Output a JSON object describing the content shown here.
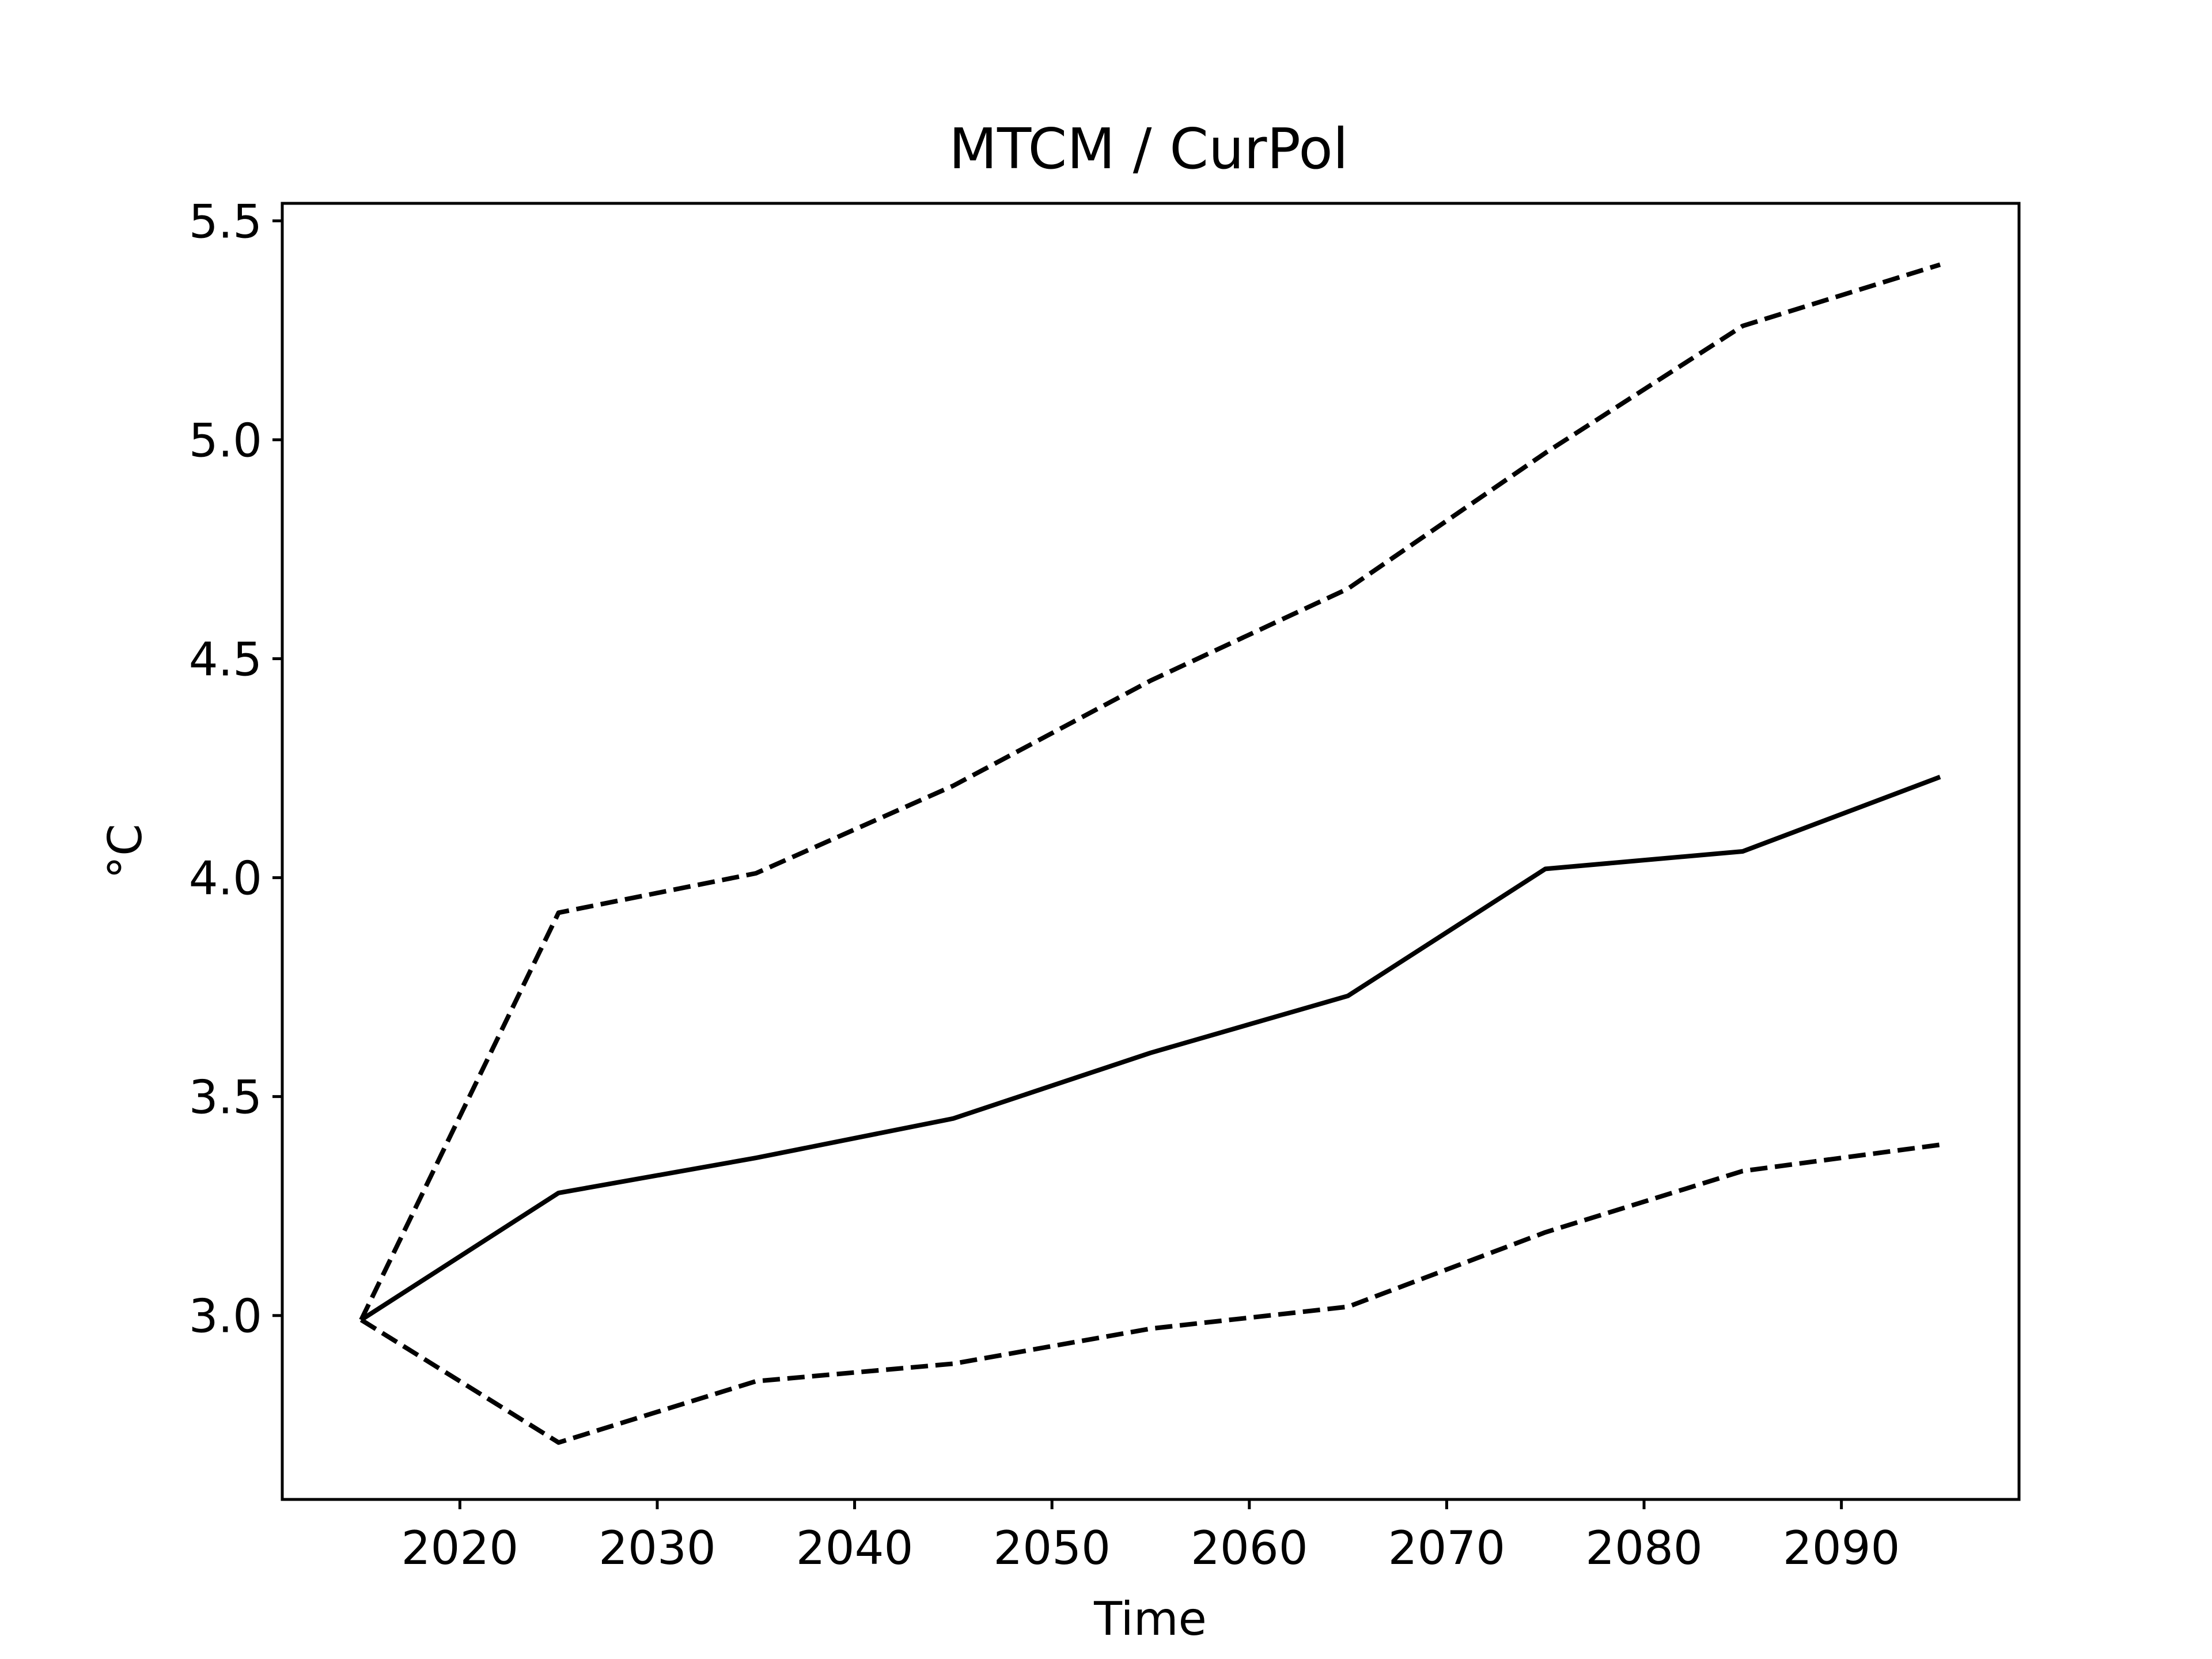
{
  "chart_data": {
    "type": "line",
    "title": "MTCM / CurPol",
    "xlabel": "Time",
    "ylabel": "°C",
    "x": [
      2015,
      2025,
      2035,
      2045,
      2055,
      2065,
      2075,
      2085,
      2095
    ],
    "xlim": [
      2011,
      2099
    ],
    "ylim": [
      2.58,
      5.54
    ],
    "xticks": [
      2020,
      2030,
      2040,
      2050,
      2060,
      2070,
      2080,
      2090
    ],
    "xtick_labels": [
      "2020",
      "2030",
      "2040",
      "2050",
      "2060",
      "2070",
      "2080",
      "2090"
    ],
    "yticks": [
      3.0,
      3.5,
      4.0,
      4.5,
      5.0,
      5.5
    ],
    "ytick_labels": [
      "3.0",
      "3.5",
      "4.0",
      "4.5",
      "5.0",
      "5.5"
    ],
    "grid": false,
    "legend": "none",
    "series": [
      {
        "style": "solid",
        "color": "#000000",
        "values": [
          2.99,
          3.28,
          3.36,
          3.45,
          3.6,
          3.73,
          4.02,
          4.06,
          4.23
        ]
      },
      {
        "style": "dashed",
        "color": "#000000",
        "values": [
          2.99,
          3.92,
          4.01,
          4.21,
          4.45,
          4.66,
          4.97,
          5.26,
          5.4
        ]
      },
      {
        "style": "dashed",
        "color": "#000000",
        "values": [
          2.99,
          2.71,
          2.85,
          2.89,
          2.97,
          3.02,
          3.19,
          3.33,
          3.39
        ]
      }
    ]
  }
}
